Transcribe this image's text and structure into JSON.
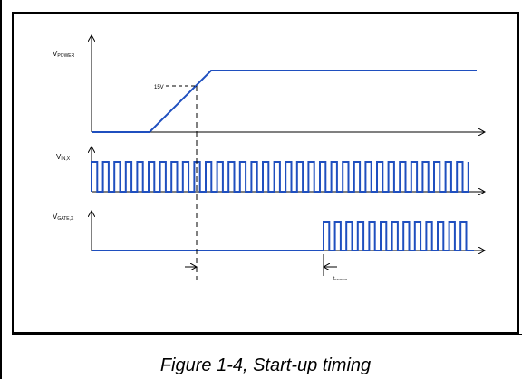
{
  "signals": {
    "vpower": {
      "main": "V",
      "sub": "POWER"
    },
    "vin": {
      "main": "V",
      "sub": "IN,X"
    },
    "vgate": {
      "main": "V",
      "sub": "GATE,X"
    }
  },
  "annotations": {
    "threshold": "15V",
    "tstartup": {
      "main": "t",
      "sub": "STARTUP"
    }
  },
  "caption": "Figure 1-4, Start-up timing",
  "colors": {
    "signal": "#1f4fbf",
    "axis": "#000000"
  }
}
